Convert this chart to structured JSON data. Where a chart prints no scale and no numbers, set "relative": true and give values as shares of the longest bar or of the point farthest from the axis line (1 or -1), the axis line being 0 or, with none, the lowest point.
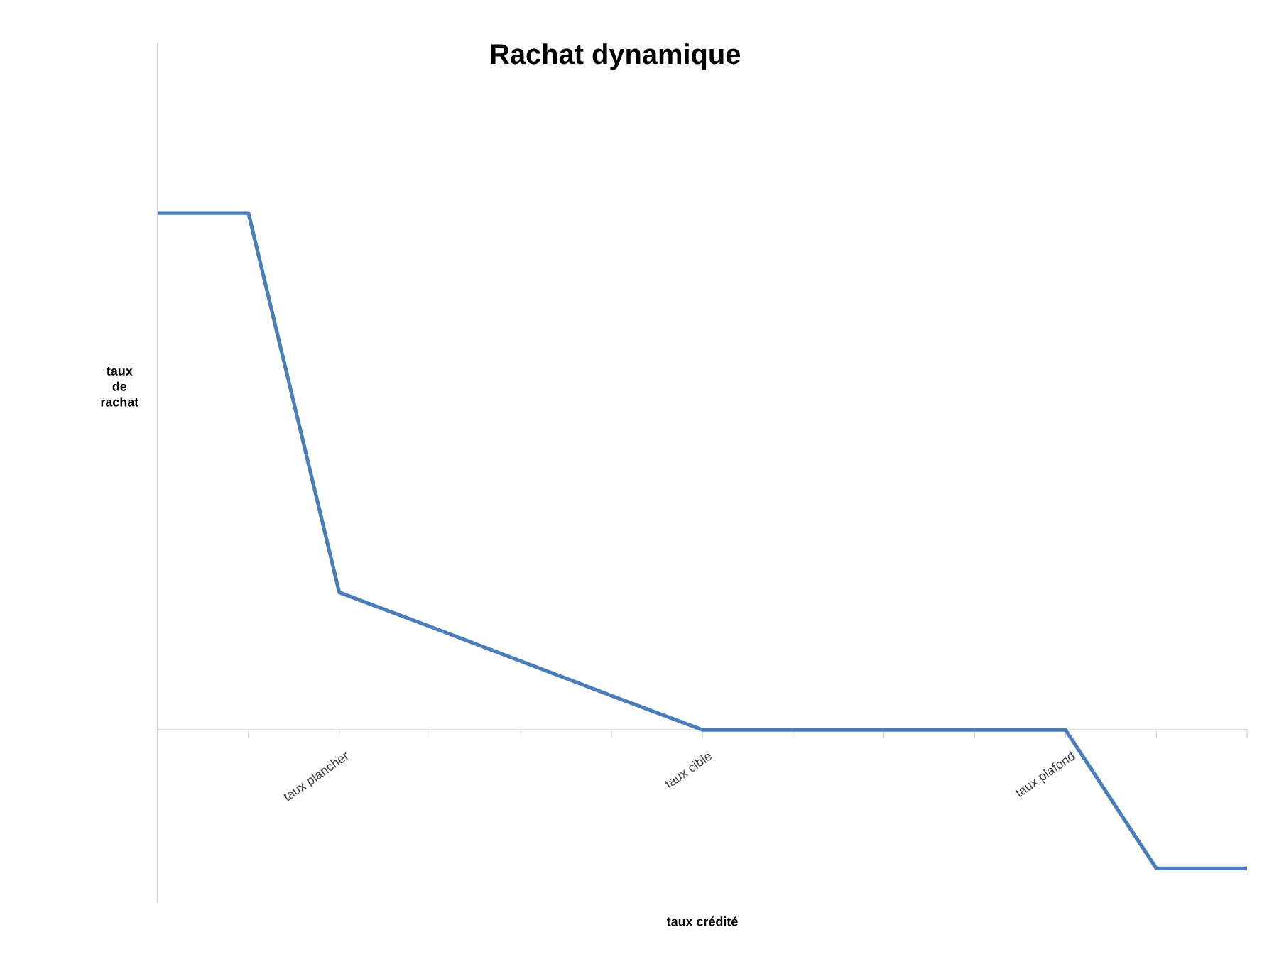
{
  "chart_data": {
    "type": "line",
    "title": "Rachat dynamique",
    "xlabel": "taux crédité",
    "ylabel": "taux de rachat",
    "relative": true,
    "categories": [
      null,
      null,
      "taux plancher",
      null,
      null,
      null,
      "taux cible",
      null,
      null,
      null,
      "taux plafond",
      null,
      null
    ],
    "series": [
      {
        "color": "#4a7ebb",
        "values": [
          1,
          1,
          0.266,
          0.2,
          0.133,
          0.066,
          0,
          0,
          0,
          0,
          0,
          -0.268,
          -0.268
        ]
      }
    ],
    "marker": "none",
    "line_style": "solid"
  }
}
